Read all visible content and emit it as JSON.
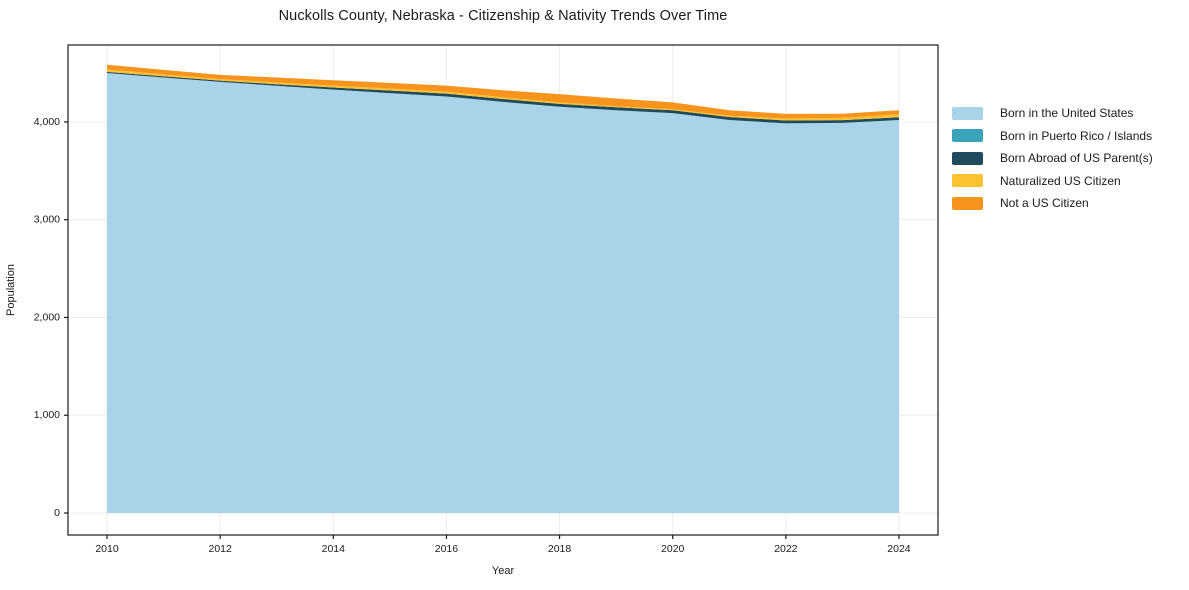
{
  "page": {
    "background": "#ffffff"
  },
  "chart_data": {
    "type": "area",
    "stacked": true,
    "title": "Nuckolls County, Nebraska - Citizenship & Nativity Trends Over Time",
    "xlabel": "Year",
    "ylabel": "Population",
    "x": [
      2010,
      2011,
      2012,
      2013,
      2014,
      2015,
      2016,
      2017,
      2018,
      2019,
      2020,
      2021,
      2022,
      2023,
      2024
    ],
    "series": [
      {
        "name": "Born in the United States",
        "color": "#a8d3e8",
        "values": [
          4500,
          4455,
          4410,
          4370,
          4330,
          4295,
          4260,
          4205,
          4155,
          4120,
          4090,
          4020,
          3985,
          3990,
          4020
        ]
      },
      {
        "name": "Born in Puerto Rico / Islands",
        "color": "#3aa4ba",
        "values": [
          0,
          0,
          0,
          0,
          0,
          0,
          0,
          0,
          0,
          0,
          0,
          0,
          0,
          0,
          0
        ]
      },
      {
        "name": "Born Abroad of US Parent(s)",
        "color": "#1f4b5c",
        "values": [
          12,
          12,
          12,
          16,
          22,
          26,
          30,
          30,
          30,
          30,
          30,
          30,
          30,
          28,
          28
        ]
      },
      {
        "name": "Naturalized US Citizen",
        "color": "#fdc230",
        "values": [
          25,
          20,
          16,
          18,
          20,
          20,
          20,
          17,
          15,
          12,
          10,
          14,
          20,
          24,
          30
        ]
      },
      {
        "name": "Not a US Citizen",
        "color": "#f7941e",
        "values": [
          48,
          46,
          44,
          50,
          55,
          58,
          62,
          72,
          85,
          78,
          70,
          56,
          48,
          42,
          42
        ]
      }
    ],
    "x_ticks": [
      2010,
      2012,
      2014,
      2016,
      2018,
      2020,
      2022,
      2024
    ],
    "x_tick_labels": [
      "2010",
      "2012",
      "2014",
      "2016",
      "2018",
      "2020",
      "2022",
      "2024"
    ],
    "y_ticks": [
      0,
      1000,
      2000,
      3000,
      4000
    ],
    "y_tick_labels": [
      "0",
      "1,000",
      "2,000",
      "3,000",
      "4,000"
    ],
    "xlim": [
      2009.31,
      2024.69
    ],
    "ylim": [
      -225,
      4787
    ],
    "grid": true,
    "legend_position": "right"
  },
  "style": {
    "grid_color": "#ebebeb",
    "spine_color": "#1a1a1a",
    "text_color": "#1a1a1a",
    "tick_font_size": 10.5,
    "axis_label_font_size": 11
  }
}
